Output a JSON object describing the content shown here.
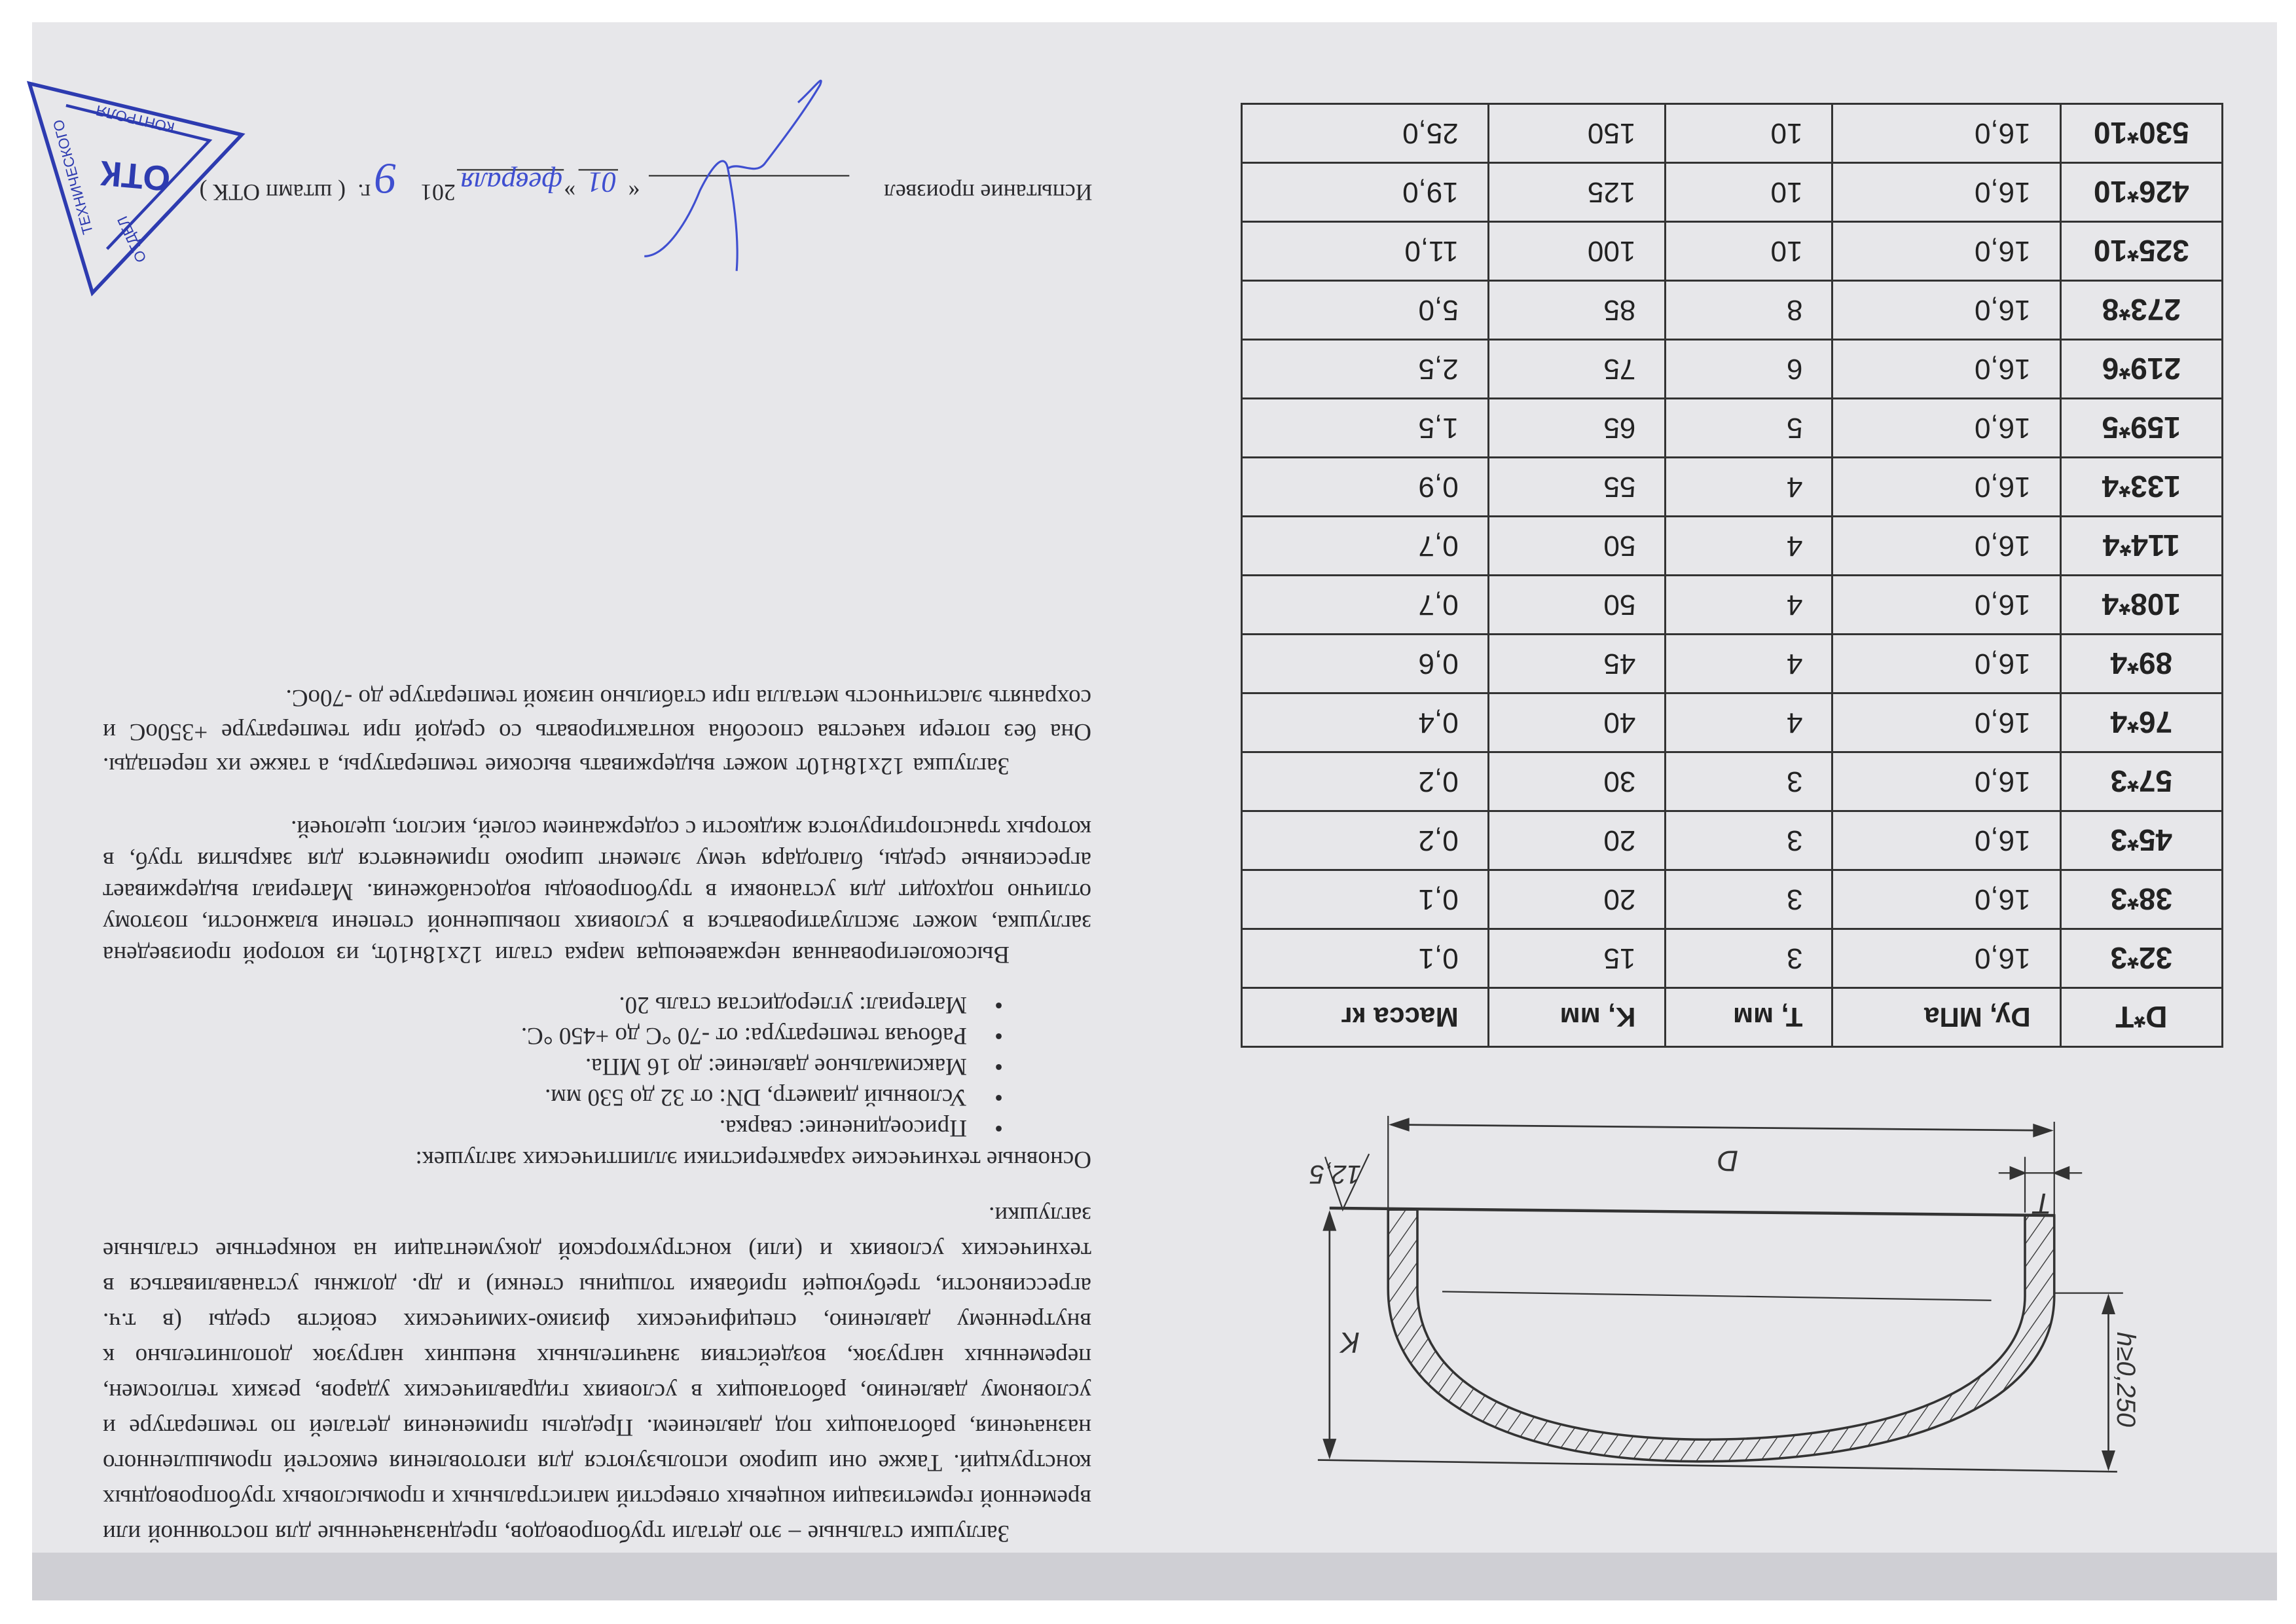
{
  "document": {
    "paragraph_1": "Заглушки стальные – это детали трубопроводов, предназначенные для постоянной или временной герметизации концевых отверстий магистральных и промысловых трубопроводных конструкций. Также они широко используются для изготовления емкостей промышленного назначения, работающих под давлением. Пределы применения деталей по температуре и условному давлению, работающих в условиях гидравлических ударов, резких теплосмен, переменных нагрузок, воздействия значительных внешних нагрузок дополнительно к внутреннему давлению, специфических физико-химических свойств среды (в т.ч. агрессивности, требующей прибавки толщины стенки) и др. должны устанавливаться в технических условиях и (или) конструкторской документации на конкретные стальные заглушки.",
    "specs_heading": "Основные технические характеристики эллиптических заглушек:",
    "specs": [
      "Присоединение: сварка.",
      "Условный диаметр, DN: от 32 до 530 мм.",
      "Максимальное давление: до 16 МПа.",
      "Рабочая температура: от -70 °С до +450 °С.",
      "Материал: углеродистая сталь 20."
    ],
    "bullet": "•",
    "paragraph_3": "Высоколегированная нержавеющая марка стали 12х18н10т, из которой произведена заглушка, может эксплуатироваться в условиях повышенной степени влажности, поэтому отлично подходит для установки в трубопроводы водоснабжения. Материал выдерживает агрессивные среды, благодаря чему элемент широко применяется для закрытия труб, в которых транспортируются жидкости с содержанием солей, кислот, щелочей.",
    "paragraph_4": "Заглушка 12х18н10т может выдерживать высокие температуры, а также их перепады. Она без потери качества способна контактировать со средой при температуре +350оС и сохранять эластичность металла при стабильно низкой температуре до -70оС."
  },
  "table": {
    "headers": [
      "D*T",
      "Dy, МПа",
      "T, мм",
      "K, мм",
      "Масса кг"
    ],
    "rows": [
      [
        "32*3",
        "16,0",
        "3",
        "15",
        "0,1"
      ],
      [
        "38*3",
        "16,0",
        "3",
        "20",
        "0,1"
      ],
      [
        "45*3",
        "16,0",
        "3",
        "20",
        "0,2"
      ],
      [
        "57*3",
        "16,0",
        "3",
        "30",
        "0,2"
      ],
      [
        "76*4",
        "16,0",
        "4",
        "40",
        "0,4"
      ],
      [
        "89*4",
        "16,0",
        "4",
        "45",
        "0,6"
      ],
      [
        "108*4",
        "16,0",
        "4",
        "50",
        "0,7"
      ],
      [
        "114*4",
        "16,0",
        "4",
        "50",
        "0,7"
      ],
      [
        "133*4",
        "16,0",
        "4",
        "55",
        "0,9"
      ],
      [
        "159*5",
        "16,0",
        "5",
        "65",
        "1,5"
      ],
      [
        "219*6",
        "16,0",
        "6",
        "75",
        "2,5"
      ],
      [
        "273*8",
        "16,0",
        "8",
        "85",
        "5,0"
      ],
      [
        "325*10",
        "16,0",
        "10",
        "100",
        "11,0"
      ],
      [
        "426*10",
        "16,0",
        "10",
        "125",
        "19,0"
      ],
      [
        "530*10",
        "16,0",
        "10",
        "150",
        "25,0"
      ]
    ]
  },
  "drawing": {
    "label_d": "D",
    "label_t": "T",
    "label_k": "K",
    "label_h": "h≥0,250",
    "label_roughness": "12,5"
  },
  "signature": {
    "tested_by_label": "Испытание произвел",
    "open_quote": "«",
    "day": "01",
    "close_quote": "»",
    "month": "февраля",
    "year_prefix": "201",
    "year_suffix": "9",
    "year_unit": "г.",
    "stamp_note": "( штамп ОТК )"
  },
  "stamp": {
    "abbr": "ОТК",
    "line_1": "ОТДЕЛ",
    "line_2": "ТЕХНИЧЕСКОГО",
    "line_3": "КОНТРОЛЯ",
    "color": "#2d3bb0"
  },
  "colors": {
    "paper": "#e7e7ea",
    "ink": "#2a2a2e",
    "pen": "#3f4fd0"
  }
}
